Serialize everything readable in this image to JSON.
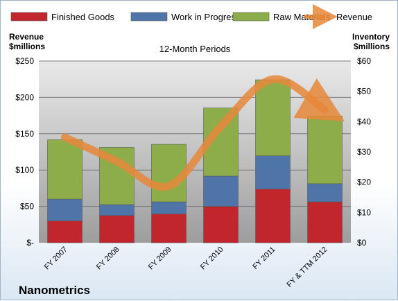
{
  "chart_data": {
    "type": "bar",
    "stacked": true,
    "title": "12-Month Periods",
    "company": "Nanometrics",
    "categories": [
      "FY 2007",
      "FY 2008",
      "FY 2009",
      "FY 2010",
      "FY 2011",
      "FY & TTM 2012"
    ],
    "left_axis": {
      "label_line1": "Revenue",
      "label_line2": "$millions",
      "range": [
        0,
        250
      ],
      "ticks": [
        0,
        50,
        100,
        150,
        200,
        250
      ],
      "tick_labels": [
        "$-",
        "$50",
        "$100",
        "$150",
        "$200",
        "$250"
      ]
    },
    "right_axis": {
      "label_line1": "Inventory",
      "label_line2": "$millions",
      "range": [
        0,
        60
      ],
      "ticks": [
        0,
        10,
        20,
        30,
        40,
        50,
        60
      ],
      "tick_labels": [
        "$0",
        "$10",
        "$20",
        "$30",
        "$40",
        "$50",
        "$60"
      ]
    },
    "legend_position": "top",
    "series": [
      {
        "name": "Finished Goods",
        "axis": "right",
        "color": "#c0262c",
        "values": [
          7.2,
          9.0,
          9.5,
          12.0,
          17.7,
          13.5
        ]
      },
      {
        "name": "Work in Progress",
        "axis": "right",
        "color": "#4f75a8",
        "values": [
          7.2,
          3.6,
          4.0,
          10.0,
          11.0,
          6.0
        ]
      },
      {
        "name": "Raw Materials",
        "axis": "right",
        "color": "#8cad4a",
        "values": [
          19.6,
          18.9,
          19.0,
          22.5,
          25.1,
          22.3
        ]
      },
      {
        "name": "Revenue",
        "axis": "left",
        "type": "line",
        "color": "#e8873a",
        "values": [
          145,
          112,
          78,
          160,
          225,
          183
        ]
      }
    ]
  }
}
